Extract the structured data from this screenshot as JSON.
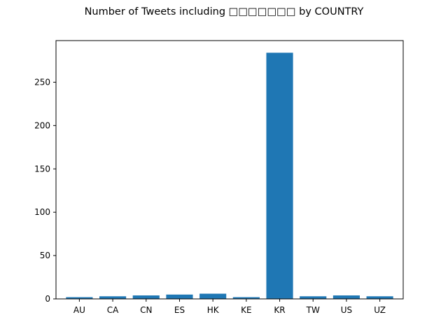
{
  "chart_data": {
    "type": "bar",
    "title": "Number of Tweets including □□□□□□□ by COUNTRY",
    "xlabel": "",
    "ylabel": "",
    "categories": [
      "AU",
      "CA",
      "CN",
      "ES",
      "HK",
      "KE",
      "KR",
      "TW",
      "US",
      "UZ"
    ],
    "values": [
      2,
      3,
      4,
      5,
      6,
      2,
      284,
      3,
      4,
      3
    ],
    "ylim": [
      0,
      298
    ],
    "yticks": [
      0,
      50,
      100,
      150,
      200,
      250
    ],
    "grid": false,
    "legend": "none",
    "bar_color": "#1f77b4"
  }
}
